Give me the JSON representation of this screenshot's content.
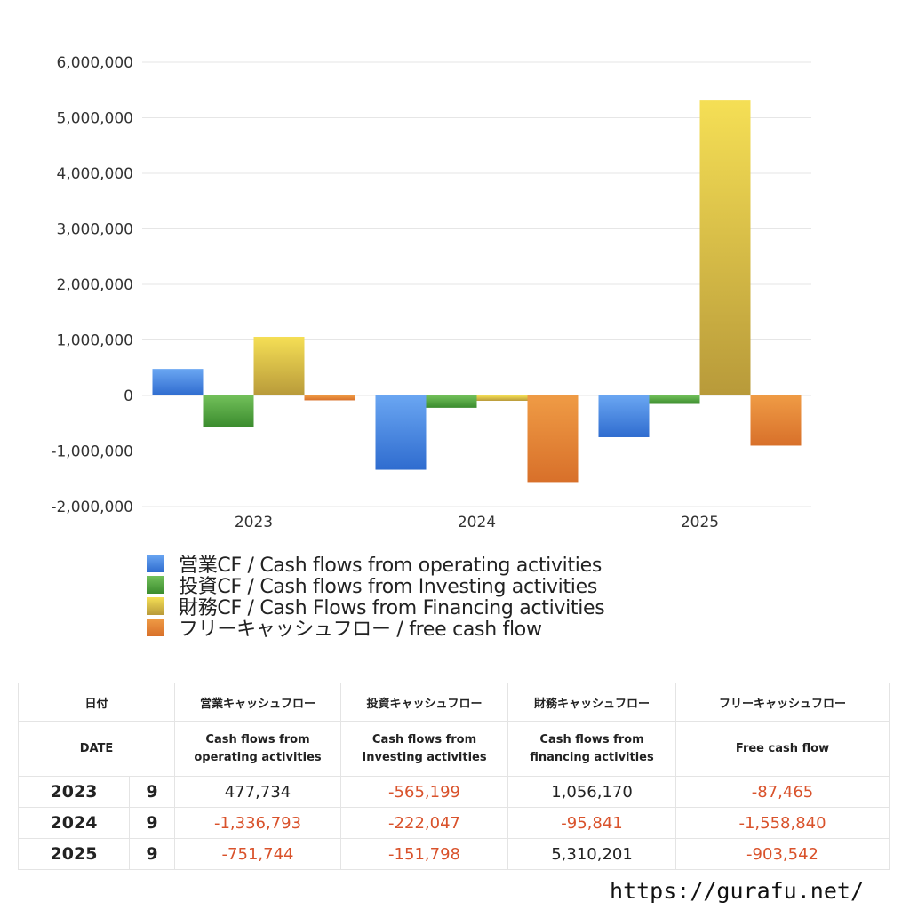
{
  "chart_data": {
    "type": "bar",
    "categories": [
      "2023",
      "2024",
      "2025"
    ],
    "ylim": [
      -2000000,
      6000000
    ],
    "yticks": [
      6000000,
      5000000,
      4000000,
      3000000,
      2000000,
      1000000,
      0,
      -1000000,
      -2000000
    ],
    "ytick_labels": [
      "6,000,000",
      "5,000,000",
      "4,000,000",
      "3,000,000",
      "2,000,000",
      "1,000,000",
      "0",
      "-1,000,000",
      "-2,000,000"
    ],
    "grid": true,
    "legend_position": "bottom-left",
    "series": [
      {
        "name": "営業CF / Cash flows from operating activities",
        "values": [
          477734,
          -1336793,
          -751744
        ],
        "color_top": "#6aa6f2",
        "color_bottom": "#2f6ccf"
      },
      {
        "name": "投資CF / Cash flows from Investing activities",
        "values": [
          -565199,
          -222047,
          -151798
        ],
        "color_top": "#72c05a",
        "color_bottom": "#3b8c2e"
      },
      {
        "name": "財務CF / Cash Flows from Financing activities",
        "values": [
          1056170,
          -95841,
          5310201
        ],
        "color_top": "#f5df55",
        "color_bottom": "#b89a3a"
      },
      {
        "name": "フリーキャッシュフロー / free cash flow",
        "values": [
          -87465,
          -1558840,
          -903542
        ],
        "color_top": "#ef9b45",
        "color_bottom": "#d8702a"
      }
    ]
  },
  "table": {
    "headers_jp": [
      "日付",
      "営業キャッシュフロー",
      "投資キャッシュフロー",
      "財務キャッシュフロー",
      "フリーキャッシュフロー"
    ],
    "headers_en": [
      "DATE",
      "Cash flows from\noperating activities",
      "Cash flows from\nInvesting activities",
      "Cash flows from\nfinancing activities",
      "Free cash flow"
    ],
    "rows": [
      {
        "year": "2023",
        "month": "9",
        "values": [
          "477,734",
          "-565,199",
          "1,056,170",
          "-87,465"
        ]
      },
      {
        "year": "2024",
        "month": "9",
        "values": [
          "-1,336,793",
          "-222,047",
          "-95,841",
          "-1,558,840"
        ]
      },
      {
        "year": "2025",
        "month": "9",
        "values": [
          "-751,744",
          "-151,798",
          "5,310,201",
          "-903,542"
        ]
      }
    ]
  },
  "footer": {
    "site": "https://gurafu.net/"
  },
  "colors": {
    "negative": "#d9522b",
    "positive": "#222222",
    "grid": "#e6e6e6"
  }
}
